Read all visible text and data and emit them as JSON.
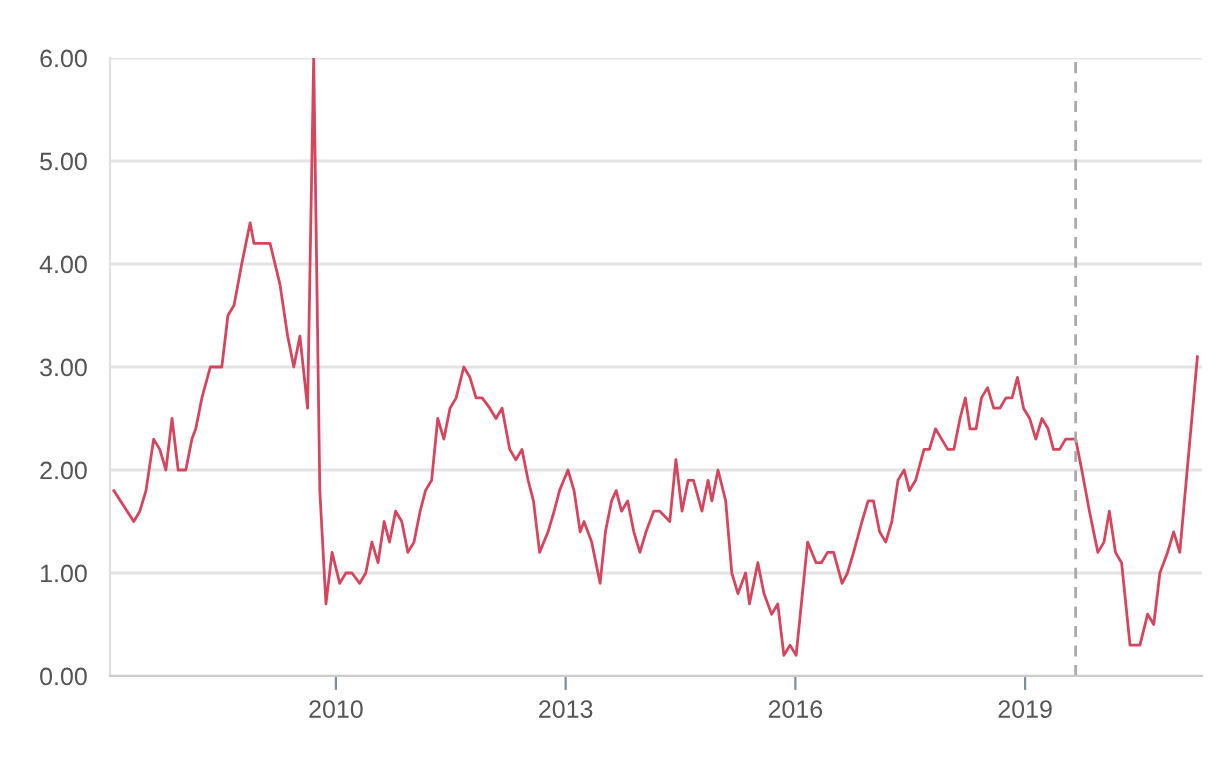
{
  "chart_data": {
    "type": "line",
    "color": "#d6455d",
    "grid": "y",
    "xlim": [
      2007.05,
      2021.31
    ],
    "xticks": [
      2010,
      2013,
      2016,
      2019
    ],
    "ylim": [
      0,
      6
    ],
    "yticks": [
      {
        "value": 0,
        "label": "0.00"
      },
      {
        "value": 1,
        "label": "1.00"
      },
      {
        "value": 2,
        "label": "2.00"
      },
      {
        "value": 3,
        "label": "3.00"
      },
      {
        "value": 4,
        "label": "4.00"
      },
      {
        "value": 5,
        "label": "5.00"
      },
      {
        "value": 6,
        "label": "6.00"
      }
    ],
    "ref_lines": [
      {
        "axis": "x",
        "value": 2019.66,
        "label": null,
        "color": "#aaaaaa",
        "line_style": "dashed"
      }
    ],
    "x": [
      2007.1,
      2007.36,
      2007.44,
      2007.52,
      2007.62,
      2007.7,
      2007.78,
      2007.86,
      2007.94,
      2008.04,
      2008.12,
      2008.17,
      2008.25,
      2008.36,
      2008.51,
      2008.59,
      2008.67,
      2008.77,
      2008.88,
      2008.93,
      2009.14,
      2009.27,
      2009.37,
      2009.45,
      2009.53,
      2009.63,
      2009.71,
      2009.79,
      2009.87,
      2009.95,
      2010.05,
      2010.13,
      2010.21,
      2010.31,
      2010.39,
      2010.47,
      2010.55,
      2010.63,
      2010.7,
      2010.78,
      2010.86,
      2010.94,
      2011.02,
      2011.1,
      2011.17,
      2011.25,
      2011.33,
      2011.41,
      2011.49,
      2011.57,
      2011.67,
      2011.75,
      2011.83,
      2011.91,
      2012.01,
      2012.09,
      2012.17,
      2012.27,
      2012.35,
      2012.43,
      2012.51,
      2012.58,
      2012.66,
      2012.77,
      2012.85,
      2012.92,
      2013.03,
      2013.11,
      2013.19,
      2013.24,
      2013.34,
      2013.45,
      2013.52,
      2013.6,
      2013.66,
      2013.73,
      2013.81,
      2013.89,
      2013.97,
      2014.05,
      2014.15,
      2014.23,
      2014.36,
      2014.44,
      2014.52,
      2014.6,
      2014.67,
      2014.78,
      2014.86,
      2014.91,
      2014.99,
      2015.09,
      2015.17,
      2015.25,
      2015.35,
      2015.4,
      2015.51,
      2015.59,
      2015.69,
      2015.77,
      2015.85,
      2015.93,
      2016.01,
      2016.16,
      2016.27,
      2016.34,
      2016.42,
      2016.5,
      2016.61,
      2016.68,
      2016.76,
      2016.87,
      2016.95,
      2017.02,
      2017.1,
      2017.18,
      2017.26,
      2017.34,
      2017.42,
      2017.49,
      2017.57,
      2017.68,
      2017.75,
      2017.83,
      2017.91,
      2017.99,
      2018.07,
      2018.15,
      2018.22,
      2018.28,
      2018.36,
      2018.43,
      2018.51,
      2018.59,
      2018.67,
      2018.75,
      2018.83,
      2018.9,
      2018.98,
      2019.06,
      2019.14,
      2019.22,
      2019.3,
      2019.37,
      2019.45,
      2019.53,
      2019.66,
      2019.74,
      2019.84,
      2019.95,
      2020.03,
      2020.1,
      2020.18,
      2020.26,
      2020.37,
      2020.5,
      2020.6,
      2020.68,
      2020.76,
      2020.86,
      2020.94,
      2021.02,
      2021.25
    ],
    "values": [
      1.8,
      1.5,
      1.6,
      1.8,
      2.3,
      2.2,
      2.0,
      2.5,
      2.0,
      2.0,
      2.3,
      2.4,
      2.7,
      3.0,
      3.0,
      3.5,
      3.6,
      4.0,
      4.4,
      4.2,
      4.2,
      3.8,
      3.3,
      3.0,
      3.3,
      2.6,
      6.0,
      1.8,
      0.7,
      1.2,
      0.9,
      1.0,
      1.0,
      0.9,
      1.0,
      1.3,
      1.1,
      1.5,
      1.3,
      1.6,
      1.5,
      1.2,
      1.3,
      1.6,
      1.8,
      1.9,
      2.5,
      2.3,
      2.6,
      2.7,
      3.0,
      2.9,
      2.7,
      2.7,
      2.6,
      2.5,
      2.6,
      2.2,
      2.1,
      2.2,
      1.9,
      1.7,
      1.2,
      1.4,
      1.6,
      1.8,
      2.0,
      1.8,
      1.4,
      1.5,
      1.3,
      0.9,
      1.4,
      1.7,
      1.8,
      1.6,
      1.7,
      1.4,
      1.2,
      1.4,
      1.6,
      1.6,
      1.5,
      2.1,
      1.6,
      1.9,
      1.9,
      1.6,
      1.9,
      1.7,
      2.0,
      1.7,
      1.0,
      0.8,
      1.0,
      0.7,
      1.1,
      0.8,
      0.6,
      0.7,
      0.2,
      0.3,
      0.2,
      1.3,
      1.1,
      1.1,
      1.2,
      1.2,
      0.9,
      1.0,
      1.2,
      1.5,
      1.7,
      1.7,
      1.4,
      1.3,
      1.5,
      1.9,
      2.0,
      1.8,
      1.9,
      2.2,
      2.2,
      2.4,
      2.3,
      2.2,
      2.2,
      2.5,
      2.7,
      2.4,
      2.4,
      2.7,
      2.8,
      2.6,
      2.6,
      2.7,
      2.7,
      2.9,
      2.6,
      2.5,
      2.3,
      2.5,
      2.4,
      2.2,
      2.2,
      2.3,
      2.3,
      2.0,
      1.6,
      1.2,
      1.3,
      1.6,
      1.2,
      1.1,
      0.3,
      0.3,
      0.6,
      0.5,
      1.0,
      1.2,
      1.4,
      1.2,
      3.1
    ]
  }
}
